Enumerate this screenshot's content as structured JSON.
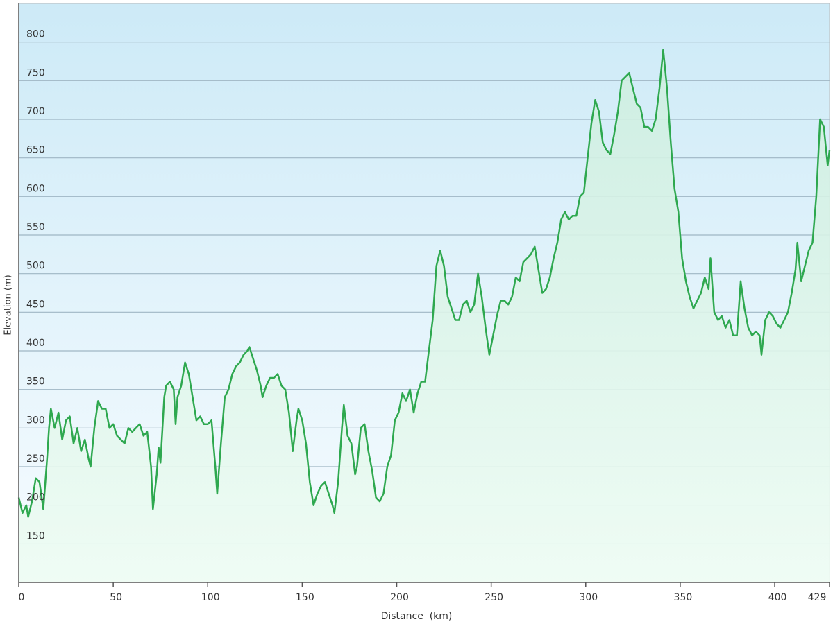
{
  "chart_data": {
    "type": "area",
    "x_label": "Distance  (km)",
    "y_label": "Elevation (m)",
    "color": "#2ea84f",
    "grid": true,
    "xlim": [
      0,
      429
    ],
    "ylim": [
      100,
      850
    ],
    "xticks": [
      0,
      50,
      100,
      150,
      200,
      250,
      300,
      350,
      400,
      429
    ],
    "yticks": [
      150,
      200,
      250,
      300,
      350,
      400,
      450,
      500,
      550,
      600,
      650,
      700,
      750,
      800
    ],
    "x": [
      0,
      2,
      4,
      5,
      7,
      9,
      11,
      13,
      15,
      16,
      17,
      19,
      21,
      23,
      25,
      27,
      29,
      31,
      33,
      35,
      37,
      38,
      40,
      42,
      44,
      46,
      48,
      50,
      52,
      54,
      56,
      58,
      60,
      62,
      64,
      66,
      68,
      70,
      71,
      73,
      74,
      75,
      77,
      78,
      80,
      82,
      83,
      84,
      86,
      88,
      90,
      92,
      94,
      96,
      98,
      100,
      102,
      104,
      105,
      107,
      109,
      111,
      113,
      115,
      117,
      119,
      121,
      122,
      124,
      126,
      128,
      129,
      131,
      133,
      135,
      137,
      139,
      141,
      143,
      145,
      147,
      148,
      150,
      152,
      154,
      156,
      158,
      160,
      162,
      164,
      166,
      167,
      169,
      171,
      172,
      174,
      176,
      178,
      179,
      181,
      183,
      185,
      187,
      189,
      191,
      193,
      195,
      197,
      199,
      201,
      203,
      205,
      207,
      209,
      211,
      213,
      215,
      217,
      219,
      221,
      223,
      225,
      227,
      229,
      231,
      233,
      235,
      237,
      239,
      241,
      243,
      245,
      247,
      249,
      251,
      253,
      255,
      257,
      259,
      261,
      263,
      265,
      267,
      269,
      271,
      273,
      275,
      277,
      279,
      281,
      283,
      285,
      287,
      289,
      291,
      293,
      295,
      297,
      299,
      301,
      303,
      305,
      307,
      309,
      311,
      313,
      315,
      317,
      319,
      321,
      323,
      325,
      327,
      329,
      331,
      333,
      335,
      337,
      339,
      341,
      343,
      345,
      347,
      349,
      351,
      353,
      355,
      357,
      359,
      361,
      363,
      365,
      366,
      368,
      370,
      372,
      374,
      376,
      378,
      380,
      382,
      384,
      386,
      388,
      390,
      392,
      393,
      395,
      397,
      399,
      401,
      403,
      405,
      407,
      409,
      411,
      412,
      414,
      416,
      418,
      420,
      422,
      424,
      426,
      428,
      429
    ],
    "values": [
      210,
      190,
      200,
      185,
      205,
      235,
      230,
      195,
      260,
      300,
      325,
      300,
      320,
      285,
      310,
      315,
      280,
      300,
      270,
      285,
      260,
      250,
      300,
      335,
      325,
      325,
      300,
      305,
      290,
      285,
      280,
      300,
      295,
      300,
      305,
      290,
      295,
      250,
      195,
      240,
      275,
      255,
      340,
      355,
      360,
      350,
      305,
      340,
      355,
      385,
      370,
      340,
      310,
      315,
      305,
      305,
      310,
      250,
      215,
      280,
      340,
      350,
      370,
      380,
      385,
      395,
      400,
      405,
      390,
      375,
      355,
      340,
      355,
      365,
      365,
      370,
      355,
      350,
      320,
      270,
      310,
      325,
      310,
      280,
      230,
      200,
      215,
      225,
      230,
      215,
      200,
      190,
      230,
      300,
      330,
      290,
      280,
      240,
      250,
      300,
      305,
      270,
      245,
      210,
      205,
      215,
      250,
      265,
      310,
      320,
      345,
      335,
      350,
      320,
      345,
      360,
      360,
      400,
      440,
      510,
      530,
      510,
      470,
      455,
      440,
      440,
      460,
      465,
      450,
      460,
      500,
      470,
      430,
      395,
      420,
      445,
      465,
      465,
      460,
      470,
      495,
      490,
      515,
      520,
      525,
      535,
      505,
      475,
      480,
      495,
      520,
      540,
      570,
      580,
      570,
      575,
      575,
      600,
      605,
      650,
      695,
      725,
      710,
      670,
      660,
      655,
      680,
      710,
      750,
      755,
      760,
      740,
      720,
      715,
      690,
      690,
      685,
      700,
      740,
      790,
      740,
      670,
      610,
      580,
      520,
      490,
      470,
      455,
      465,
      475,
      495,
      480,
      520,
      450,
      440,
      445,
      430,
      440,
      420,
      420,
      490,
      455,
      430,
      420,
      425,
      420,
      395,
      440,
      450,
      445,
      435,
      430,
      440,
      450,
      475,
      505,
      540,
      490,
      510,
      530,
      540,
      600,
      700,
      690,
      640,
      660
    ]
  }
}
